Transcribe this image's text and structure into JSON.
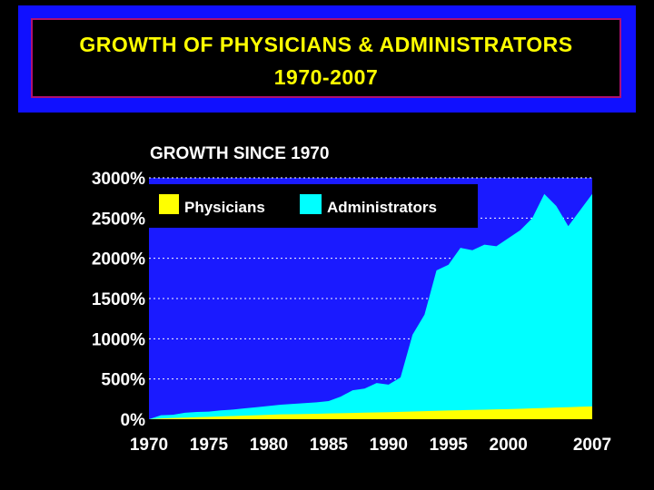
{
  "slide": {
    "title_line1": "GROWTH OF PHYSICIANS & ADMINISTRATORS",
    "title_line2": "1970-2007"
  },
  "colors": {
    "background": "#000000",
    "banner": "#1010ff",
    "banner_border": "#b01070",
    "title_text": "#ffff00",
    "plot_area": "#1a1aff",
    "physicians": "#ffff00",
    "administrators": "#00ffff"
  },
  "chart_data": {
    "type": "area",
    "title": "GROWTH SINCE 1970",
    "xlim": [
      1970,
      2007
    ],
    "ylim": [
      0,
      3000
    ],
    "y_ticks": [
      0,
      500,
      1000,
      1500,
      2000,
      2500,
      3000
    ],
    "y_tick_labels": [
      "0%",
      "500%",
      "1000%",
      "1500%",
      "2000%",
      "2500%",
      "3000%"
    ],
    "x_ticks": [
      1970,
      1975,
      1980,
      1985,
      1990,
      1995,
      2000,
      2007
    ],
    "x_tick_labels": [
      "1970",
      "1975",
      "1980",
      "1985",
      "1990",
      "1995",
      "2000",
      "2007"
    ],
    "grid": "horizontal dotted",
    "legend_position": "top-left",
    "x": [
      1970,
      1971,
      1972,
      1973,
      1974,
      1975,
      1976,
      1977,
      1978,
      1979,
      1980,
      1981,
      1982,
      1983,
      1984,
      1985,
      1986,
      1987,
      1988,
      1989,
      1990,
      1991,
      1992,
      1993,
      1994,
      1995,
      1996,
      1997,
      1998,
      1999,
      2000,
      2001,
      2002,
      2003,
      2004,
      2005,
      2006,
      2007
    ],
    "series": [
      {
        "name": "Physicians",
        "color": "#ffff00",
        "values": [
          0,
          10,
          15,
          20,
          25,
          30,
          35,
          40,
          45,
          50,
          55,
          60,
          62,
          65,
          68,
          72,
          75,
          78,
          82,
          85,
          88,
          92,
          96,
          100,
          104,
          108,
          112,
          115,
          118,
          122,
          126,
          130,
          135,
          140,
          145,
          150,
          155,
          160
        ]
      },
      {
        "name": "Administrators",
        "color": "#00ffff",
        "values": [
          0,
          50,
          55,
          80,
          90,
          95,
          110,
          120,
          135,
          150,
          165,
          180,
          190,
          200,
          210,
          225,
          280,
          360,
          380,
          450,
          430,
          520,
          1050,
          1300,
          1850,
          1920,
          2130,
          2100,
          2170,
          2150,
          2250,
          2350,
          2500,
          2800,
          2650,
          2400,
          2600,
          2800
        ]
      }
    ]
  }
}
